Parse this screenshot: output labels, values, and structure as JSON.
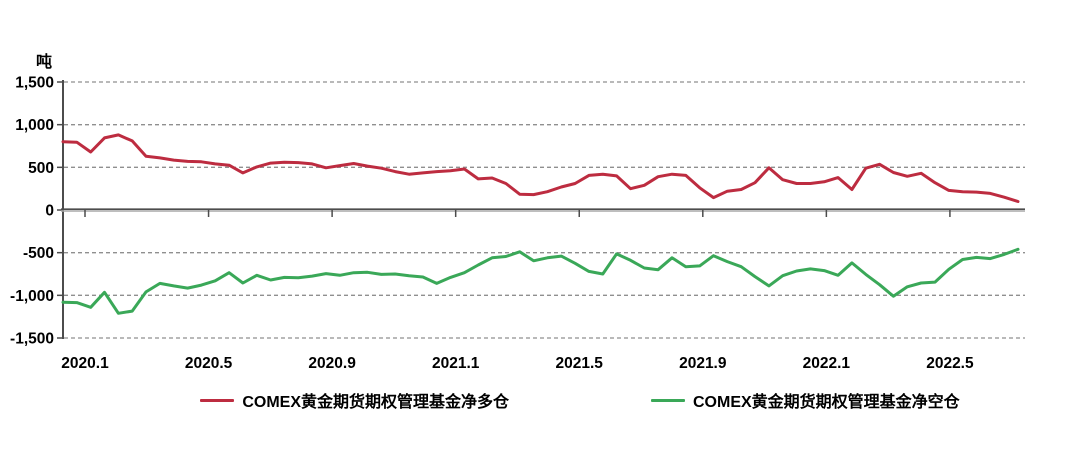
{
  "chart_data": {
    "type": "line",
    "title": "",
    "unit_label": "吨",
    "xlabel": "",
    "ylabel": "吨",
    "ylim": [
      -1500,
      1500
    ],
    "grid": "horizontal-dashed",
    "legend_position": "bottom",
    "y_ticks": [
      1500,
      1000,
      500,
      0,
      -500,
      -1000,
      -1500
    ],
    "y_tick_labels": [
      "1,500",
      "1,000",
      "500",
      "0",
      "-500",
      "-1,000",
      "-1,500"
    ],
    "x_tick_labels": [
      "2020.1",
      "2020.5",
      "2020.9",
      "2021.1",
      "2021.5",
      "2021.9",
      "2022.1",
      "2022.5"
    ],
    "x_range_note": "weekly data, Jan 2020 - Jul 2022, points evenly spaced",
    "series": [
      {
        "name": "COMEX黄金期货期权管理基金净多仓",
        "color": "#bd2c40",
        "values": [
          800,
          795,
          680,
          845,
          880,
          810,
          630,
          610,
          585,
          570,
          565,
          540,
          525,
          435,
          505,
          550,
          560,
          555,
          540,
          495,
          520,
          545,
          515,
          490,
          450,
          420,
          435,
          450,
          460,
          480,
          365,
          375,
          310,
          185,
          180,
          215,
          270,
          310,
          405,
          420,
          400,
          250,
          290,
          390,
          420,
          405,
          260,
          145,
          220,
          240,
          320,
          495,
          355,
          310,
          310,
          330,
          380,
          240,
          490,
          535,
          440,
          395,
          430,
          320,
          230,
          215,
          210,
          195,
          150,
          100
        ]
      },
      {
        "name": "COMEX黄金期货期权管理基金净空仓",
        "color": "#3aa858",
        "values": [
          -1080,
          -1085,
          -1140,
          -965,
          -1210,
          -1185,
          -960,
          -860,
          -890,
          -915,
          -880,
          -830,
          -735,
          -855,
          -765,
          -820,
          -790,
          -795,
          -775,
          -745,
          -765,
          -735,
          -730,
          -755,
          -750,
          -770,
          -785,
          -860,
          -790,
          -735,
          -645,
          -560,
          -545,
          -490,
          -595,
          -560,
          -540,
          -625,
          -720,
          -750,
          -515,
          -590,
          -680,
          -700,
          -560,
          -665,
          -655,
          -535,
          -605,
          -665,
          -780,
          -890,
          -770,
          -715,
          -690,
          -710,
          -765,
          -620,
          -755,
          -875,
          -1010,
          -900,
          -855,
          -845,
          -695,
          -580,
          -555,
          -570,
          -520,
          -460
        ]
      }
    ]
  },
  "colors": {
    "background": "#ffffff",
    "grid": "#8f8f8f",
    "axis": "#4c4c4c",
    "axis_shadow": "#a8a8a8",
    "text": "#000000"
  }
}
